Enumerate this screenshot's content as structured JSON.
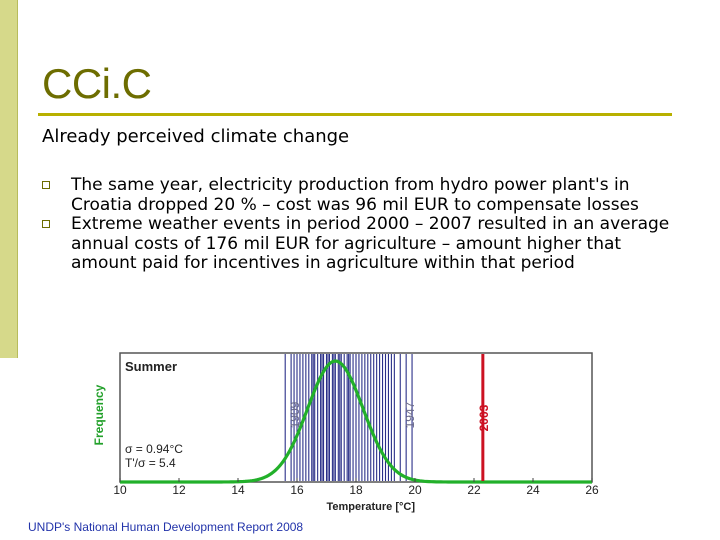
{
  "slide": {
    "title": "CCi.C",
    "subtitle": "Already perceived climate change",
    "bullets": [
      "The same year, electricity production from hydro power plant's in Croatia dropped 20 % – cost was 96 mil EUR to compensate losses",
      "Extreme weather events in period 2000 – 2007 resulted in an average annual costs of 176 mil EUR for agriculture – amount higher that amount paid for incentives in agriculture within that period"
    ],
    "source": "UNDP's National Human Development Report 2008"
  },
  "chart_data": {
    "type": "line",
    "title": "Summer",
    "xlabel": "Temperature [°C]",
    "ylabel": "Frequency",
    "xlim": [
      10,
      26
    ],
    "ticks": [
      10,
      12,
      14,
      16,
      18,
      20,
      22,
      24,
      26
    ],
    "tick_labels": [
      "10",
      "12",
      "14",
      "16",
      "18",
      "20",
      "22",
      "24",
      "26"
    ],
    "mean": 17.3,
    "sigma": 0.94,
    "stats": [
      "σ = 0.94°C",
      "T'/σ = 5.4"
    ],
    "observed_years": [
      15.6,
      15.8,
      15.9,
      16.0,
      16.1,
      16.2,
      16.3,
      16.4,
      16.5,
      16.55,
      16.6,
      16.7,
      16.8,
      16.85,
      16.9,
      17.0,
      17.05,
      17.1,
      17.2,
      17.25,
      17.3,
      17.4,
      17.45,
      17.5,
      17.6,
      17.7,
      17.75,
      17.8,
      17.9,
      18.0,
      18.1,
      18.2,
      18.3,
      18.4,
      18.5,
      18.6,
      18.7,
      18.8,
      18.9,
      19.0,
      19.1,
      19.2,
      19.3,
      19.5,
      19.7,
      19.9
    ],
    "annotations": [
      {
        "label": "1909",
        "x": 15.9
      },
      {
        "label": "1947",
        "x": 19.8
      },
      {
        "label": "2003",
        "x": 22.3,
        "highlight": true
      }
    ],
    "colors": {
      "curve": "#22b02a",
      "year_line": "#2a2f88",
      "highlight": "#cc1122",
      "plot_border": "#555555",
      "axis_label": "#22a02a"
    }
  }
}
